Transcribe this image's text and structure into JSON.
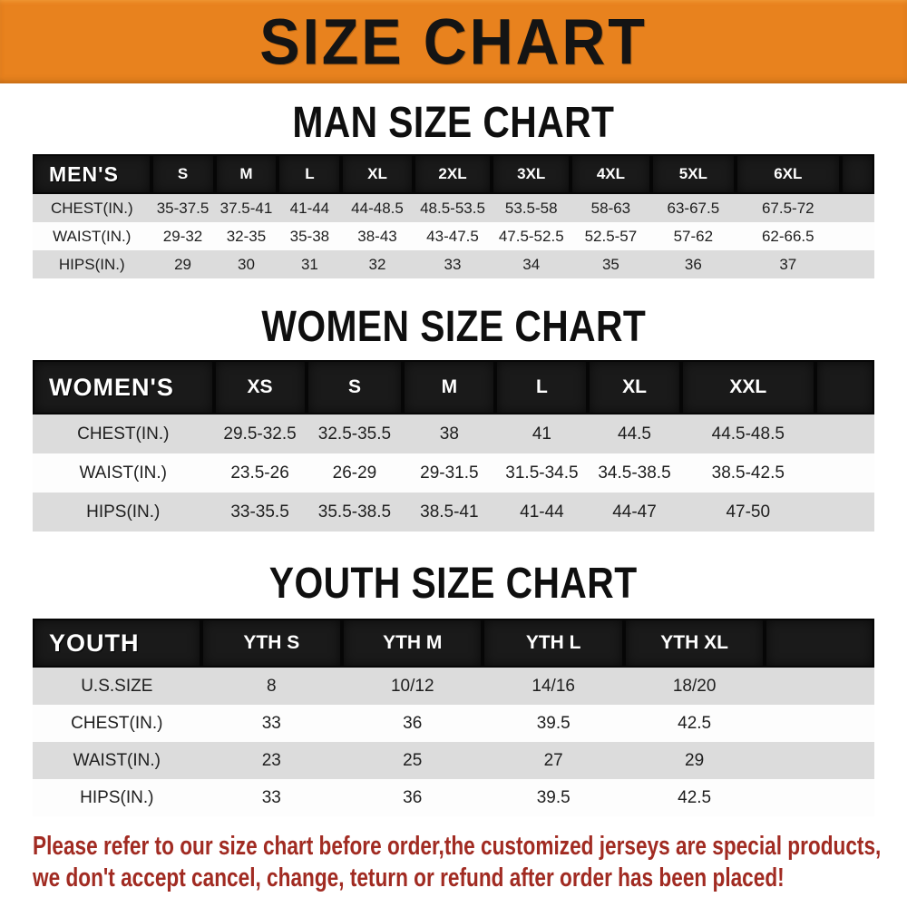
{
  "banner": {
    "title": "SIZE CHART"
  },
  "colors": {
    "banner_bg": "#e8821e",
    "header_bg": "#1a1a1a",
    "row_alt": "#dcdcdc",
    "row_plain": "#fdfdfd",
    "note_red": "#a12b22"
  },
  "sections": {
    "men": {
      "title": "MAN SIZE CHART",
      "table": {
        "header": [
          "MEN'S",
          "S",
          "M",
          "L",
          "XL",
          "2XL",
          "3XL",
          "4XL",
          "5XL",
          "6XL"
        ],
        "rows": [
          {
            "label": "CHEST(IN.)",
            "values": [
              "35-37.5",
              "37.5-41",
              "41-44",
              "44-48.5",
              "48.5-53.5",
              "53.5-58",
              "58-63",
              "63-67.5",
              "67.5-72"
            ]
          },
          {
            "label": "WAIST(IN.)",
            "values": [
              "29-32",
              "32-35",
              "35-38",
              "38-43",
              "43-47.5",
              "47.5-52.5",
              "52.5-57",
              "57-62",
              "62-66.5"
            ]
          },
          {
            "label": "HIPS(IN.)",
            "values": [
              "29",
              "30",
              "31",
              "32",
              "33",
              "34",
              "35",
              "36",
              "37"
            ]
          }
        ]
      }
    },
    "women": {
      "title": "WOMEN SIZE CHART",
      "table": {
        "header": [
          "WOMEN'S",
          "XS",
          "S",
          "M",
          "L",
          "XL",
          "XXL"
        ],
        "rows": [
          {
            "label": "CHEST(IN.)",
            "values": [
              "29.5-32.5",
              "32.5-35.5",
              "38",
              "41",
              "44.5",
              "44.5-48.5"
            ]
          },
          {
            "label": "WAIST(IN.)",
            "values": [
              "23.5-26",
              "26-29",
              "29-31.5",
              "31.5-34.5",
              "34.5-38.5",
              "38.5-42.5"
            ]
          },
          {
            "label": "HIPS(IN.)",
            "values": [
              "33-35.5",
              "35.5-38.5",
              "38.5-41",
              "41-44",
              "44-47",
              "47-50"
            ]
          }
        ]
      }
    },
    "youth": {
      "title": "YOUTH SIZE CHART",
      "table": {
        "header": [
          "YOUTH",
          "YTH S",
          "YTH M",
          "YTH L",
          "YTH XL"
        ],
        "rows": [
          {
            "label": "U.S.SIZE",
            "values": [
              "8",
              "10/12",
              "14/16",
              "18/20"
            ]
          },
          {
            "label": "CHEST(IN.)",
            "values": [
              "33",
              "36",
              "39.5",
              "42.5"
            ]
          },
          {
            "label": "WAIST(IN.)",
            "values": [
              "23",
              "25",
              "27",
              "29"
            ]
          },
          {
            "label": "HIPS(IN.)",
            "values": [
              "33",
              "36",
              "39.5",
              "42.5"
            ]
          }
        ]
      }
    }
  },
  "note": {
    "line1": "Please refer to our size chart before order,the customized jerseys are special products,",
    "line2": "we don't accept cancel, change, teturn or refund after order has been placed!"
  }
}
